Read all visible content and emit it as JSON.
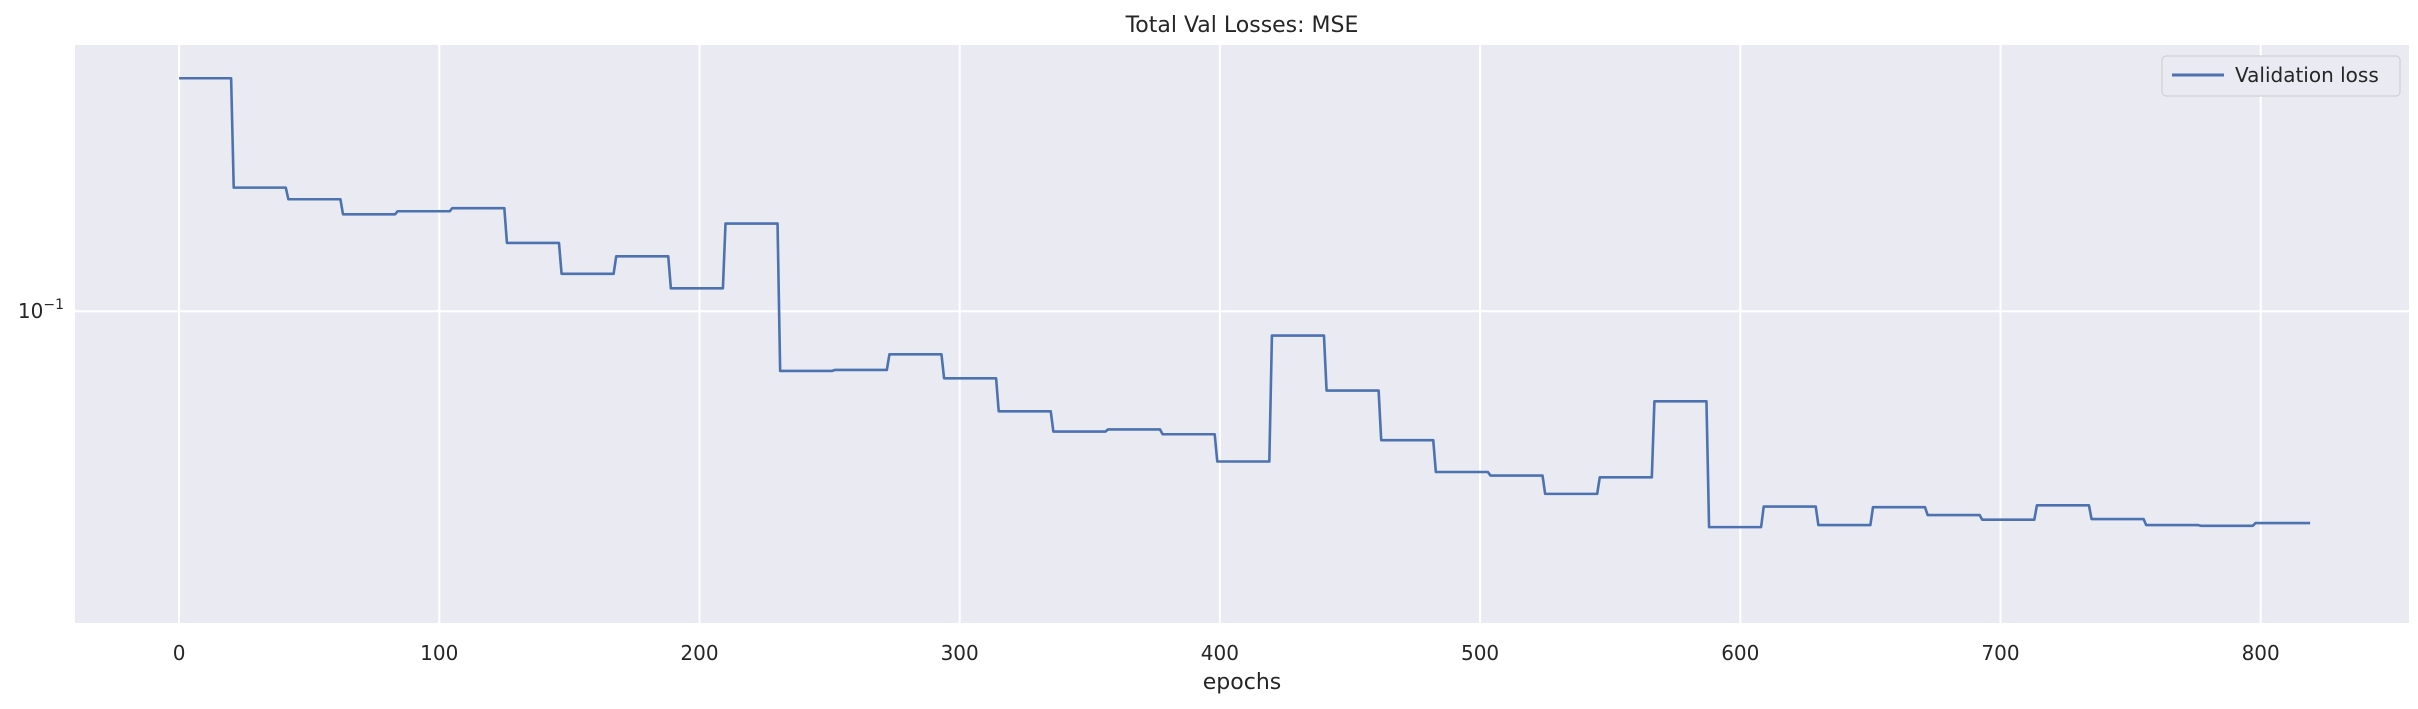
{
  "chart_data": {
    "type": "line",
    "title": "Total Val Losses:  MSE",
    "xlabel": "epochs",
    "ylabel": "",
    "yscale": "log",
    "xlim": [
      -40,
      857
    ],
    "ylim": [
      0.0452,
      0.197
    ],
    "grid": true,
    "legend_position": "top-right",
    "x_ticks": [
      0,
      100,
      200,
      300,
      400,
      500,
      600,
      700,
      800
    ],
    "y_ticks": [
      {
        "value": 0.1,
        "base": "10",
        "exponent": "−1"
      }
    ],
    "series": [
      {
        "name": "Validation loss",
        "color": "#4c72b0",
        "steps": [
          [
            0,
            0.181
          ],
          [
            21,
            0.137
          ],
          [
            42,
            0.133
          ],
          [
            63,
            0.128
          ],
          [
            84,
            0.129
          ],
          [
            105,
            0.13
          ],
          [
            126,
            0.119
          ],
          [
            147,
            0.11
          ],
          [
            168,
            0.115
          ],
          [
            189,
            0.106
          ],
          [
            210,
            0.125
          ],
          [
            231,
            0.0859
          ],
          [
            252,
            0.0861
          ],
          [
            273,
            0.0896
          ],
          [
            294,
            0.0843
          ],
          [
            315,
            0.0775
          ],
          [
            336,
            0.0736
          ],
          [
            357,
            0.074
          ],
          [
            378,
            0.0731
          ],
          [
            399,
            0.0682
          ],
          [
            420,
            0.094
          ],
          [
            441,
            0.0817
          ],
          [
            462,
            0.072
          ],
          [
            483,
            0.0664
          ],
          [
            504,
            0.0658
          ],
          [
            525,
            0.0628
          ],
          [
            546,
            0.0655
          ],
          [
            567,
            0.0795
          ],
          [
            588,
            0.0577
          ],
          [
            609,
            0.0608
          ],
          [
            630,
            0.058
          ],
          [
            651,
            0.0607
          ],
          [
            672,
            0.0595
          ],
          [
            693,
            0.0588
          ],
          [
            714,
            0.061
          ],
          [
            735,
            0.0589
          ],
          [
            756,
            0.058
          ],
          [
            777,
            0.0579
          ],
          [
            798,
            0.0583
          ],
          [
            819,
            0.0583
          ]
        ]
      }
    ]
  }
}
